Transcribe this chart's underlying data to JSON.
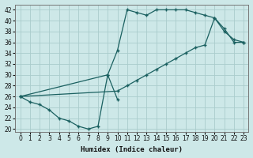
{
  "bg_color": "#cde8e8",
  "grid_color": "#aacccc",
  "line_color": "#1a6060",
  "xlabel": "Humidex (Indice chaleur)",
  "xlim": [
    -0.5,
    23.5
  ],
  "ylim": [
    19.5,
    43
  ],
  "xticks": [
    0,
    1,
    2,
    3,
    4,
    5,
    6,
    7,
    8,
    9,
    10,
    11,
    12,
    13,
    14,
    15,
    16,
    17,
    18,
    19,
    20,
    21,
    22,
    23
  ],
  "yticks": [
    20,
    22,
    24,
    26,
    28,
    30,
    32,
    34,
    36,
    38,
    40,
    42
  ],
  "line_zigzag_x": [
    0,
    1,
    2,
    3,
    4,
    5,
    6,
    7,
    8,
    9,
    10
  ],
  "line_zigzag_y": [
    26,
    25,
    24.5,
    23.5,
    22,
    21.5,
    20.5,
    20,
    20.5,
    30,
    25.5
  ],
  "line_top_x": [
    0,
    9,
    10,
    11,
    12,
    13,
    14,
    15,
    16,
    17,
    18,
    19,
    20,
    21,
    22,
    23
  ],
  "line_top_y": [
    26,
    30,
    34.5,
    42,
    41.5,
    41,
    42,
    42,
    42,
    42,
    41.5,
    41,
    40.5,
    38,
    36.5,
    36
  ],
  "line_diag_x": [
    0,
    10,
    11,
    12,
    13,
    14,
    15,
    16,
    17,
    18,
    19,
    20,
    21,
    22,
    23
  ],
  "line_diag_y": [
    26,
    27,
    28,
    29,
    30,
    31,
    32,
    33,
    34,
    35,
    35.5,
    40.5,
    38.5,
    36,
    36
  ]
}
